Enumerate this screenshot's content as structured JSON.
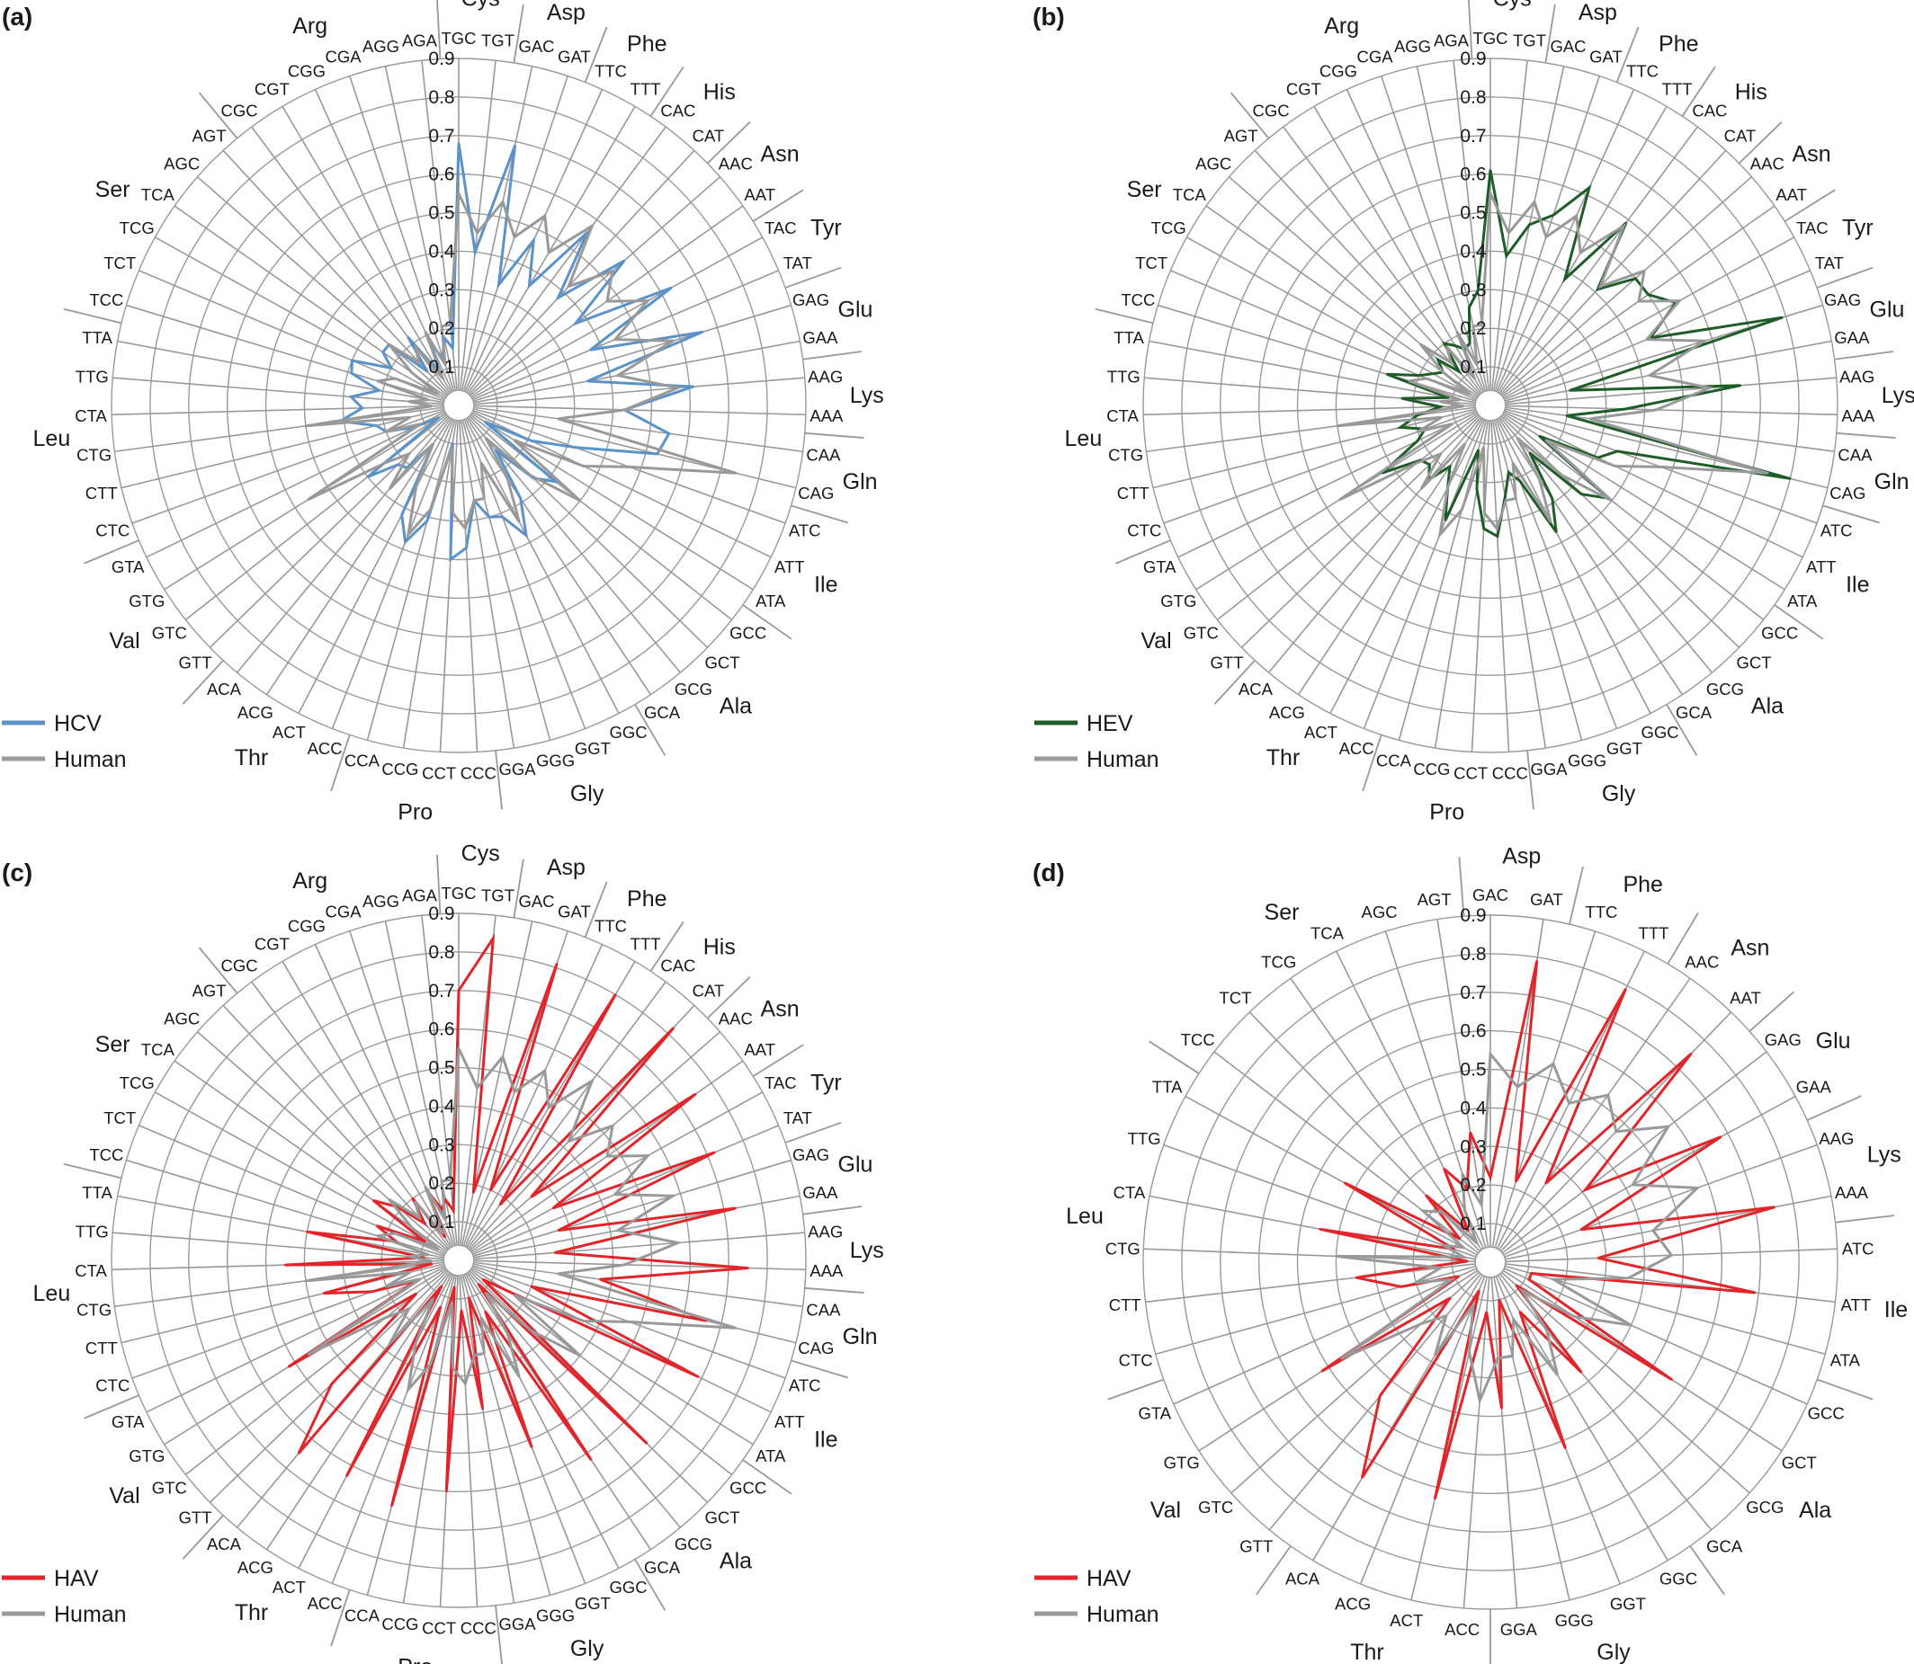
{
  "figure": {
    "colors": {
      "human": "#999999",
      "axis": "#999999",
      "grid": "#999999",
      "text": "#1a1a1a"
    }
  },
  "chart_data": [
    {
      "type": "radar",
      "panel_label": "(a)",
      "rlim": [
        0,
        0.9
      ],
      "r_ticks": [
        "0.1",
        "0.2",
        "0.3",
        "0.4",
        "0.5",
        "0.6",
        "0.7",
        "0.8",
        "0.9"
      ],
      "legend": "bottom-left",
      "codons": [
        "TGC",
        "TGT",
        "GAC",
        "GAT",
        "TTC",
        "TTT",
        "CAC",
        "CAT",
        "AAC",
        "AAT",
        "TAC",
        "TAT",
        "GAG",
        "GAA",
        "AAG",
        "AAA",
        "CAA",
        "CAG",
        "ATC",
        "ATT",
        "ATA",
        "GCC",
        "GCT",
        "GCG",
        "GCA",
        "GGC",
        "GGT",
        "GGG",
        "GGA",
        "CCC",
        "CCT",
        "CCG",
        "CCA",
        "ACC",
        "ACT",
        "ACG",
        "ACA",
        "GTT",
        "GTC",
        "GTG",
        "GTA",
        "CTC",
        "CTT",
        "CTG",
        "CTA",
        "TTG",
        "TTA",
        "TCC",
        "TCT",
        "TCG",
        "TCA",
        "AGC",
        "AGT",
        "CGC",
        "CGT",
        "CGG",
        "CGA",
        "AGG",
        "AGA"
      ],
      "amino_acids": [
        {
          "name": "Cys",
          "start": 0,
          "end": 2
        },
        {
          "name": "Asp",
          "start": 2,
          "end": 4
        },
        {
          "name": "Phe",
          "start": 4,
          "end": 6
        },
        {
          "name": "His",
          "start": 6,
          "end": 8
        },
        {
          "name": "Asn",
          "start": 8,
          "end": 10
        },
        {
          "name": "Tyr",
          "start": 10,
          "end": 12
        },
        {
          "name": "Glu",
          "start": 12,
          "end": 14
        },
        {
          "name": "Lys",
          "start": 14,
          "end": 16
        },
        {
          "name": "Gln",
          "start": 16,
          "end": 18
        },
        {
          "name": "Ile",
          "start": 18,
          "end": 21
        },
        {
          "name": "Ala",
          "start": 21,
          "end": 25
        },
        {
          "name": "Gly",
          "start": 25,
          "end": 29
        },
        {
          "name": "Pro",
          "start": 29,
          "end": 33
        },
        {
          "name": "Thr",
          "start": 33,
          "end": 37
        },
        {
          "name": "Val",
          "start": 37,
          "end": 41
        },
        {
          "name": "Leu",
          "start": 41,
          "end": 47
        },
        {
          "name": "Ser",
          "start": 47,
          "end": 53
        },
        {
          "name": "Arg",
          "start": 53,
          "end": 59
        }
      ],
      "series": [
        {
          "name": "HCV",
          "color": "#5b93c9",
          "values": [
            0.68,
            0.4,
            0.69,
            0.33,
            0.47,
            0.36,
            0.56,
            0.38,
            0.57,
            0.37,
            0.63,
            0.37,
            0.66,
            0.34,
            0.61,
            0.43,
            0.55,
            0.53,
            0.32,
            0.21,
            0.08,
            0.32,
            0.27,
            0.15,
            0.29,
            0.38,
            0.31,
            0.3,
            0.25,
            0.37,
            0.4,
            0.1,
            0.31,
            0.38,
            0.32,
            0.12,
            0.21,
            0.22,
            0.3,
            0.06,
            0.13,
            0.2,
            0.22,
            0.31,
            0.25,
            0.28,
            0.21,
            0.29,
            0.3,
            0.2,
            0.24,
            0.24,
            0.12,
            0.22,
            0.1,
            0.17,
            0.13,
            0.18,
            0.15
          ]
        },
        {
          "name": "Human",
          "color": "#999999",
          "values": [
            0.55,
            0.45,
            0.54,
            0.46,
            0.54,
            0.46,
            0.58,
            0.42,
            0.53,
            0.47,
            0.56,
            0.44,
            0.58,
            0.42,
            0.57,
            0.43,
            0.26,
            0.74,
            0.47,
            0.36,
            0.17,
            0.4,
            0.26,
            0.11,
            0.23,
            0.34,
            0.16,
            0.25,
            0.25,
            0.32,
            0.28,
            0.11,
            0.28,
            0.36,
            0.24,
            0.12,
            0.28,
            0.18,
            0.24,
            0.46,
            0.11,
            0.2,
            0.13,
            0.4,
            0.07,
            0.13,
            0.08,
            0.22,
            0.18,
            0.06,
            0.15,
            0.24,
            0.15,
            0.19,
            0.08,
            0.21,
            0.11,
            0.21,
            0.21
          ]
        }
      ]
    },
    {
      "type": "radar",
      "panel_label": "(b)",
      "rlim": [
        0,
        0.9
      ],
      "r_ticks": [
        "0.1",
        "0.2",
        "0.3",
        "0.4",
        "0.5",
        "0.6",
        "0.7",
        "0.8",
        "0.9"
      ],
      "legend": "bottom-left",
      "codons": [
        "TGC",
        "TGT",
        "GAC",
        "GAT",
        "TTC",
        "TTT",
        "CAC",
        "CAT",
        "AAC",
        "AAT",
        "TAC",
        "TAT",
        "GAG",
        "GAA",
        "AAG",
        "AAA",
        "CAA",
        "CAG",
        "ATC",
        "ATT",
        "ATA",
        "GCC",
        "GCT",
        "GCG",
        "GCA",
        "GGC",
        "GGT",
        "GGG",
        "GGA",
        "CCC",
        "CCT",
        "CCG",
        "CCA",
        "ACC",
        "ACT",
        "ACG",
        "ACA",
        "GTT",
        "GTC",
        "GTG",
        "GTA",
        "CTC",
        "CTT",
        "CTG",
        "CTA",
        "TTG",
        "TTA",
        "TCC",
        "TCT",
        "TCG",
        "TCA",
        "AGC",
        "AGT",
        "CGC",
        "CGT",
        "CGG",
        "CGA",
        "AGG",
        "AGA"
      ],
      "amino_acids": [
        {
          "name": "Cys",
          "start": 0,
          "end": 2
        },
        {
          "name": "Asp",
          "start": 2,
          "end": 4
        },
        {
          "name": "Phe",
          "start": 4,
          "end": 6
        },
        {
          "name": "His",
          "start": 6,
          "end": 8
        },
        {
          "name": "Asn",
          "start": 8,
          "end": 10
        },
        {
          "name": "Tyr",
          "start": 10,
          "end": 12
        },
        {
          "name": "Glu",
          "start": 12,
          "end": 14
        },
        {
          "name": "Lys",
          "start": 14,
          "end": 16
        },
        {
          "name": "Gln",
          "start": 16,
          "end": 18
        },
        {
          "name": "Ile",
          "start": 18,
          "end": 21
        },
        {
          "name": "Ala",
          "start": 21,
          "end": 25
        },
        {
          "name": "Gly",
          "start": 25,
          "end": 29
        },
        {
          "name": "Pro",
          "start": 29,
          "end": 33
        },
        {
          "name": "Thr",
          "start": 33,
          "end": 37
        },
        {
          "name": "Val",
          "start": 37,
          "end": 41
        },
        {
          "name": "Leu",
          "start": 41,
          "end": 47
        },
        {
          "name": "Ser",
          "start": 47,
          "end": 53
        },
        {
          "name": "Arg",
          "start": 53,
          "end": 59
        }
      ],
      "series": [
        {
          "name": "HEV",
          "color": "#1e5c28",
          "values": [
            0.61,
            0.39,
            0.48,
            0.52,
            0.62,
            0.38,
            0.59,
            0.41,
            0.5,
            0.5,
            0.55,
            0.45,
            0.79,
            0.21,
            0.65,
            0.35,
            0.2,
            0.8,
            0.35,
            0.31,
            0.15,
            0.39,
            0.33,
            0.16,
            0.29,
            0.37,
            0.21,
            0.18,
            0.24,
            0.34,
            0.32,
            0.22,
            0.12,
            0.32,
            0.24,
            0.19,
            0.25,
            0.22,
            0.23,
            0.33,
            0.21,
            0.18,
            0.24,
            0.19,
            0.13,
            0.23,
            0.11,
            0.28,
            0.2,
            0.17,
            0.15,
            0.18,
            0.12,
            0.2,
            0.18,
            0.16,
            0.17,
            0.26,
            0.3
          ]
        },
        {
          "name": "Human",
          "color": "#999999",
          "values": [
            0.55,
            0.45,
            0.54,
            0.46,
            0.54,
            0.46,
            0.58,
            0.42,
            0.53,
            0.47,
            0.56,
            0.44,
            0.58,
            0.42,
            0.57,
            0.43,
            0.26,
            0.74,
            0.47,
            0.36,
            0.17,
            0.4,
            0.26,
            0.11,
            0.23,
            0.34,
            0.16,
            0.25,
            0.25,
            0.32,
            0.28,
            0.11,
            0.28,
            0.36,
            0.24,
            0.12,
            0.28,
            0.18,
            0.24,
            0.46,
            0.11,
            0.2,
            0.13,
            0.4,
            0.07,
            0.13,
            0.08,
            0.22,
            0.18,
            0.06,
            0.15,
            0.24,
            0.15,
            0.19,
            0.08,
            0.21,
            0.11,
            0.21,
            0.21
          ]
        }
      ]
    },
    {
      "type": "radar",
      "panel_label": "(c)",
      "rlim": [
        0,
        0.9
      ],
      "r_ticks": [
        "0.1",
        "0.2",
        "0.3",
        "0.4",
        "0.5",
        "0.6",
        "0.7",
        "0.8",
        "0.9"
      ],
      "legend": "bottom-left",
      "codons": [
        "TGC",
        "TGT",
        "GAC",
        "GAT",
        "TTC",
        "TTT",
        "CAC",
        "CAT",
        "AAC",
        "AAT",
        "TAC",
        "TAT",
        "GAG",
        "GAA",
        "AAG",
        "AAA",
        "CAA",
        "CAG",
        "ATC",
        "ATT",
        "ATA",
        "GCC",
        "GCT",
        "GCG",
        "GCA",
        "GGC",
        "GGT",
        "GGG",
        "GGA",
        "CCC",
        "CCT",
        "CCG",
        "CCA",
        "ACC",
        "ACT",
        "ACG",
        "ACA",
        "GTT",
        "GTC",
        "GTG",
        "GTA",
        "CTC",
        "CTT",
        "CTG",
        "CTA",
        "TTG",
        "TTA",
        "TCC",
        "TCT",
        "TCG",
        "TCA",
        "AGC",
        "AGT",
        "CGC",
        "CGT",
        "CGG",
        "CGA",
        "AGG",
        "AGA"
      ],
      "amino_acids": [
        {
          "name": "Cys",
          "start": 0,
          "end": 2
        },
        {
          "name": "Asp",
          "start": 2,
          "end": 4
        },
        {
          "name": "Phe",
          "start": 4,
          "end": 6
        },
        {
          "name": "His",
          "start": 6,
          "end": 8
        },
        {
          "name": "Asn",
          "start": 8,
          "end": 10
        },
        {
          "name": "Tyr",
          "start": 10,
          "end": 12
        },
        {
          "name": "Glu",
          "start": 12,
          "end": 14
        },
        {
          "name": "Lys",
          "start": 14,
          "end": 16
        },
        {
          "name": "Gln",
          "start": 16,
          "end": 18
        },
        {
          "name": "Ile",
          "start": 18,
          "end": 21
        },
        {
          "name": "Ala",
          "start": 21,
          "end": 25
        },
        {
          "name": "Gly",
          "start": 25,
          "end": 29
        },
        {
          "name": "Pro",
          "start": 29,
          "end": 33
        },
        {
          "name": "Thr",
          "start": 33,
          "end": 37
        },
        {
          "name": "Val",
          "start": 37,
          "end": 41
        },
        {
          "name": "Leu",
          "start": 41,
          "end": 47
        },
        {
          "name": "Ser",
          "start": 47,
          "end": 53
        },
        {
          "name": "Arg",
          "start": 53,
          "end": 59
        }
      ],
      "series": [
        {
          "name": "HAV",
          "color": "#e0262b",
          "values": [
            0.7,
            0.84,
            0.18,
            0.81,
            0.2,
            0.8,
            0.18,
            0.82,
            0.25,
            0.75,
            0.28,
            0.72,
            0.27,
            0.73,
            0.25,
            0.75,
            0.37,
            0.66,
            0.2,
            0.69,
            0.15,
            0.08,
            0.68,
            0.08,
            0.62,
            0.15,
            0.52,
            0.1,
            0.39,
            0.13,
            0.6,
            0.07,
            0.66,
            0.13,
            0.63,
            0.08,
            0.65,
            0.46,
            0.14,
            0.52,
            0.12,
            0.24,
            0.36,
            0.07,
            0.45,
            0.09,
            0.4,
            0.17,
            0.23,
            0.1,
            0.27,
            0.21,
            0.13,
            0.2,
            0.07,
            0.2,
            0.14,
            0.16,
            0.13
          ]
        },
        {
          "name": "Human",
          "color": "#999999",
          "values": [
            0.55,
            0.45,
            0.54,
            0.46,
            0.54,
            0.46,
            0.58,
            0.42,
            0.53,
            0.47,
            0.56,
            0.44,
            0.58,
            0.42,
            0.57,
            0.43,
            0.26,
            0.74,
            0.47,
            0.36,
            0.17,
            0.4,
            0.26,
            0.11,
            0.23,
            0.34,
            0.16,
            0.25,
            0.25,
            0.32,
            0.28,
            0.11,
            0.28,
            0.36,
            0.24,
            0.12,
            0.28,
            0.18,
            0.24,
            0.46,
            0.11,
            0.2,
            0.13,
            0.4,
            0.07,
            0.13,
            0.08,
            0.22,
            0.18,
            0.06,
            0.15,
            0.24,
            0.15,
            0.19,
            0.08,
            0.21,
            0.11,
            0.21,
            0.21
          ]
        }
      ]
    },
    {
      "type": "radar",
      "panel_label": "(d)",
      "rlim": [
        0,
        0.9
      ],
      "r_ticks": [
        "0.1",
        "0.2",
        "0.3",
        "0.4",
        "0.5",
        "0.6",
        "0.7",
        "0.8",
        "0.9"
      ],
      "legend": "bottom-left",
      "codons": [
        "GAC",
        "GAT",
        "TTC",
        "TTT",
        "AAC",
        "AAT",
        "GAG",
        "GAA",
        "AAG",
        "AAA",
        "ATC",
        "ATT",
        "ATA",
        "GCC",
        "GCT",
        "GCG",
        "GCA",
        "GGC",
        "GGT",
        "GGG",
        "GGA",
        "ACC",
        "ACT",
        "ACG",
        "ACA",
        "GTT",
        "GTC",
        "GTG",
        "GTA",
        "CTC",
        "CTT",
        "CTG",
        "CTA",
        "TTG",
        "TTA",
        "TCC",
        "TCT",
        "TCG",
        "TCA",
        "AGC",
        "AGT"
      ],
      "amino_acids": [
        {
          "name": "Asp",
          "start": 0,
          "end": 2
        },
        {
          "name": "Phe",
          "start": 2,
          "end": 4
        },
        {
          "name": "Asn",
          "start": 4,
          "end": 6
        },
        {
          "name": "Glu",
          "start": 6,
          "end": 8
        },
        {
          "name": "Lys",
          "start": 8,
          "end": 10
        },
        {
          "name": "Ile",
          "start": 10,
          "end": 13
        },
        {
          "name": "Ala",
          "start": 13,
          "end": 17
        },
        {
          "name": "Gly",
          "start": 17,
          "end": 21
        },
        {
          "name": "Thr",
          "start": 21,
          "end": 25
        },
        {
          "name": "Val",
          "start": 25,
          "end": 29
        },
        {
          "name": "Leu",
          "start": 29,
          "end": 35
        },
        {
          "name": "Ser",
          "start": 35,
          "end": 41
        }
      ],
      "series": [
        {
          "name": "HAV",
          "color": "#e0262b",
          "values": [
            0.22,
            0.79,
            0.22,
            0.79,
            0.25,
            0.75,
            0.31,
            0.68,
            0.25,
            0.75,
            0.28,
            0.69,
            0.11,
            0.11,
            0.56,
            0.09,
            0.37,
            0.15,
            0.52,
            0.1,
            0.38,
            0.13,
            0.63,
            0.08,
            0.65,
            0.45,
            0.14,
            0.52,
            0.09,
            0.24,
            0.35,
            0.06,
            0.45,
            0.1,
            0.43,
            0.1,
            0.24,
            0.1,
            0.27,
            0.2,
            0.34
          ]
        },
        {
          "name": "Human",
          "color": "#999999",
          "values": [
            0.54,
            0.46,
            0.54,
            0.46,
            0.53,
            0.47,
            0.58,
            0.42,
            0.57,
            0.43,
            0.47,
            0.36,
            0.17,
            0.4,
            0.26,
            0.11,
            0.23,
            0.34,
            0.16,
            0.25,
            0.25,
            0.36,
            0.24,
            0.12,
            0.28,
            0.18,
            0.24,
            0.46,
            0.11,
            0.2,
            0.13,
            0.4,
            0.07,
            0.13,
            0.08,
            0.22,
            0.18,
            0.06,
            0.15,
            0.24,
            0.15
          ]
        }
      ]
    }
  ]
}
